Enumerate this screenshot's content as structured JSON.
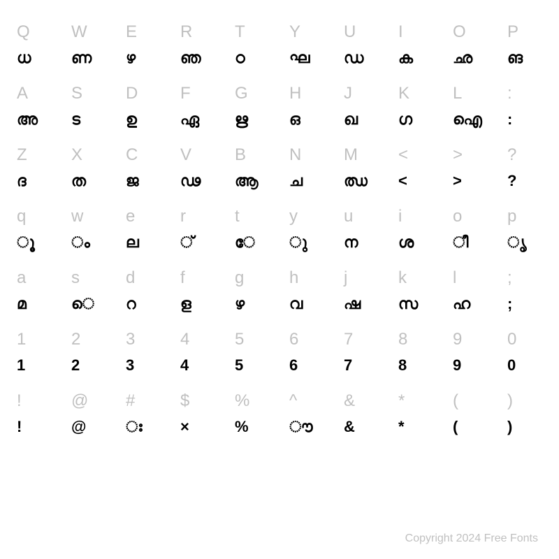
{
  "rows": [
    {
      "type": "input",
      "cells": [
        "Q",
        "W",
        "E",
        "R",
        "T",
        "Y",
        "U",
        "I",
        "O",
        "P"
      ]
    },
    {
      "type": "glyph",
      "cells": [
        "ധ",
        "ണ",
        "ഴ",
        "ഞ",
        "ഠ",
        "ഘ",
        "ഡ",
        "ക",
        "ഛ",
        "ങ"
      ]
    },
    {
      "type": "input",
      "cells": [
        "A",
        "S",
        "D",
        "F",
        "G",
        "H",
        "J",
        "K",
        "L",
        ":"
      ]
    },
    {
      "type": "glyph",
      "cells": [
        "അ",
        "ട",
        "ഉ",
        "ഏ",
        "ഋ",
        "ഒ",
        "ഖ",
        "ഗ",
        "ഐ",
        ":"
      ]
    },
    {
      "type": "input",
      "cells": [
        "Z",
        "X",
        "C",
        "V",
        "B",
        "N",
        "M",
        "<",
        ">",
        "?"
      ]
    },
    {
      "type": "glyph",
      "cells": [
        "ദ",
        "ത",
        "ജ",
        "ഢ",
        "ആ",
        "ച",
        "ഝ",
        "<",
        ">",
        "?"
      ]
    },
    {
      "type": "input",
      "cells": [
        "q",
        "w",
        "e",
        "r",
        "t",
        "y",
        "u",
        "i",
        "o",
        "p"
      ]
    },
    {
      "type": "glyph",
      "cells": [
        "ൂ",
        "ം",
        "ല",
        "്",
        "േ",
        "ു",
        "ന",
        "ശ",
        "ീ",
        "ൃ"
      ]
    },
    {
      "type": "input",
      "cells": [
        "a",
        "s",
        "d",
        "f",
        "g",
        "h",
        "j",
        "k",
        "l",
        ";"
      ]
    },
    {
      "type": "glyph",
      "cells": [
        "മ",
        "െ",
        "റ",
        "ള",
        "ഴ",
        "വ",
        "ഷ",
        "സ",
        "ഹ",
        ";"
      ]
    },
    {
      "type": "input",
      "cells": [
        "1",
        "2",
        "3",
        "4",
        "5",
        "6",
        "7",
        "8",
        "9",
        "0"
      ]
    },
    {
      "type": "glyph",
      "cells": [
        "1",
        "2",
        "3",
        "4",
        "5",
        "6",
        "7",
        "8",
        "9",
        "0"
      ]
    },
    {
      "type": "input",
      "cells": [
        "!",
        "@",
        "#",
        "$",
        "%",
        "^",
        "&",
        "*",
        "(",
        ")"
      ]
    },
    {
      "type": "glyph",
      "cells": [
        "!",
        "@",
        "ഃ",
        "×",
        "%",
        "ൗ",
        "&",
        "*",
        "(",
        ")"
      ]
    }
  ],
  "copyright": "Copyright 2024 Free Fonts",
  "colors": {
    "input": "#c0c0c0",
    "glyph": "#000000",
    "background": "#ffffff"
  },
  "font_sizes": {
    "input": 24,
    "glyph": 22,
    "copyright": 16
  }
}
